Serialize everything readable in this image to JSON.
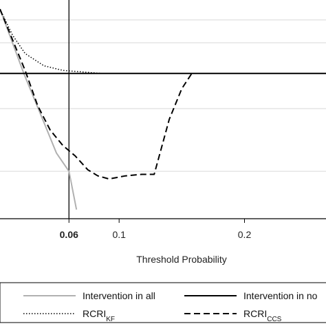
{
  "chart_data": {
    "type": "line",
    "title": "",
    "xlabel": "Threshold  Probability",
    "ylabel": "",
    "xlim": [
      0.005,
      0.265
    ],
    "ylim": [
      -0.0095,
      0.0048
    ],
    "grid": true,
    "reference_line_x": 0.06,
    "x_ticks": [
      {
        "value": 0.06,
        "label": "0.06",
        "bold": true
      },
      {
        "value": 0.1,
        "label": "0.1",
        "bold": false
      },
      {
        "value": 0.2,
        "label": "0.2",
        "bold": false
      }
    ],
    "y_gridlines": [
      0.0035,
      0.002,
      -0.0023,
      -0.0064
    ],
    "legend_position": "bottom",
    "series": [
      {
        "name": "Intervention  in all",
        "label_parts": [
          {
            "text": "Intervention  in all"
          }
        ],
        "color": "#b0b0b0",
        "dash": "none",
        "width": 2,
        "x": [
          0.005,
          0.024,
          0.04,
          0.05,
          0.06,
          0.066
        ],
        "y": [
          0.0042,
          0.0,
          -0.0032,
          -0.0052,
          -0.0064,
          -0.0089
        ]
      },
      {
        "name": "Intervention  in none",
        "label_parts": [
          {
            "text": "Intervention  in no"
          }
        ],
        "color": "#000000",
        "dash": "none",
        "width": 2,
        "x": [
          0.005,
          0.265
        ],
        "y": [
          0.0,
          0.0
        ]
      },
      {
        "name": "RCRI_KF",
        "label_parts": [
          {
            "text": "RCRI"
          },
          {
            "text": "KF",
            "sub": true
          }
        ],
        "color": "#000000",
        "dash": "1.5,2.5",
        "width": 1.5,
        "x": [
          0.005,
          0.015,
          0.025,
          0.04,
          0.055,
          0.07,
          0.085,
          0.1,
          0.115
        ],
        "y": [
          0.0042,
          0.0025,
          0.0013,
          0.0005,
          0.0002,
          0.0001,
          0.0,
          0.0,
          0.0
        ]
      },
      {
        "name": "RCRI_CCS",
        "label_parts": [
          {
            "text": "RCRI"
          },
          {
            "text": "CCS",
            "sub": true
          }
        ],
        "color": "#000000",
        "dash": "9,5",
        "width": 2,
        "x": [
          0.005,
          0.015,
          0.025,
          0.035,
          0.045,
          0.055,
          0.065,
          0.075,
          0.083,
          0.092,
          0.105,
          0.118,
          0.128,
          0.14,
          0.15,
          0.158
        ],
        "y": [
          0.0042,
          0.0022,
          0.0002,
          -0.0021,
          -0.0037,
          -0.0047,
          -0.0054,
          -0.0063,
          -0.0067,
          -0.0069,
          -0.0067,
          -0.0066,
          -0.0066,
          -0.003,
          -0.001,
          0.0
        ]
      }
    ]
  }
}
